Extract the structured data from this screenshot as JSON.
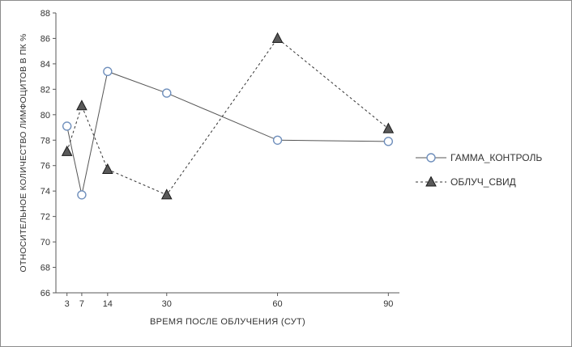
{
  "window": {
    "background": "#ffffff",
    "border_color": "#8c8c8c",
    "axis_color": "#595959",
    "text_color": "#333333"
  },
  "chart_data": {
    "type": "line",
    "title": "",
    "xlabel": "ВРЕМЯ ПОСЛЕ ОБЛУЧЕНИЯ (СУТ)",
    "ylabel": "ОТНОСИТЕЛЬНОЕ КОЛИЧЕСТВО ЛИМФОЦИТОВ В ПК %",
    "x": [
      3,
      7,
      14,
      30,
      60,
      90
    ],
    "xticks": [
      3,
      7,
      14,
      30,
      60,
      90
    ],
    "xlim": [
      0,
      93
    ],
    "ylim": [
      66,
      88
    ],
    "ytick_step": 2,
    "grid": false,
    "legend_position": "right",
    "series": [
      {
        "name": "ГАММА_КОНТРОЛЬ",
        "values": [
          79.1,
          73.7,
          83.4,
          81.7,
          78.0,
          77.9
        ],
        "marker": "circle",
        "line_style": "solid",
        "marker_color": "#6f8fbc",
        "marker_fill": "#ffffff",
        "line_color": "#555555"
      },
      {
        "name": "ОБЛУЧ_СВИД",
        "values": [
          77.1,
          80.7,
          75.7,
          73.7,
          86.0,
          78.9
        ],
        "marker": "triangle",
        "line_style": "dashed",
        "marker_color": "#595959",
        "marker_edge": "#1a1a1a",
        "line_color": "#333333"
      }
    ]
  }
}
